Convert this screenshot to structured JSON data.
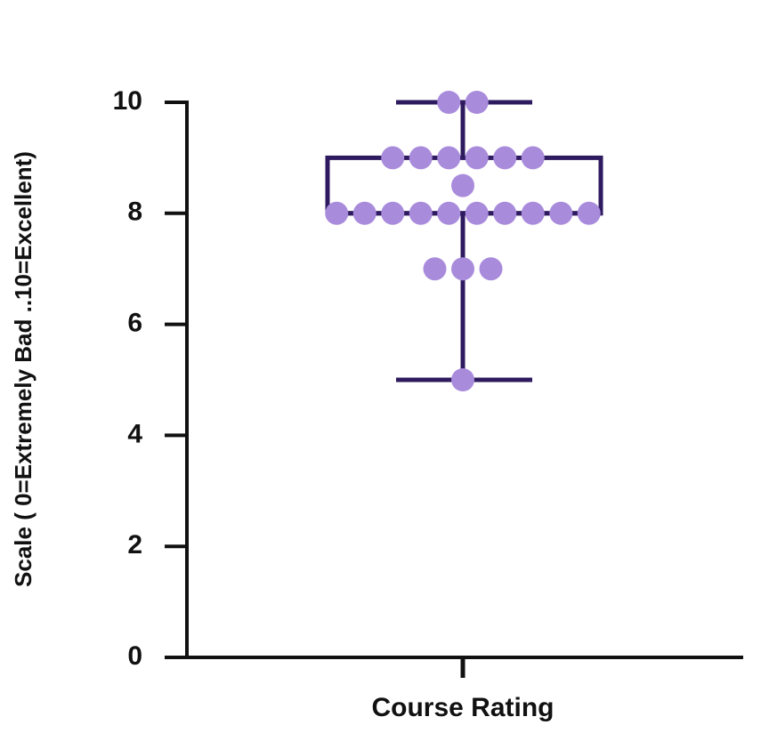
{
  "chart_data": {
    "type": "box",
    "y_label": "Scale ( 0=Extremely Bad ..10=Excellent)",
    "categories": [
      "Course Rating"
    ],
    "box": {
      "min": 5,
      "q1": 8,
      "median": 8,
      "q3": 9,
      "max": 10
    },
    "points": [
      10,
      10,
      9,
      9,
      9,
      9,
      9,
      9,
      8.5,
      8,
      8,
      8,
      8,
      8,
      8,
      8,
      8,
      8,
      8,
      7,
      7,
      7,
      5
    ],
    "box_color": "#2e1a5e",
    "point_color": "#a98bdc",
    "ylim": [
      0,
      10
    ],
    "yticks": [
      0,
      2,
      4,
      6,
      8,
      10
    ]
  }
}
